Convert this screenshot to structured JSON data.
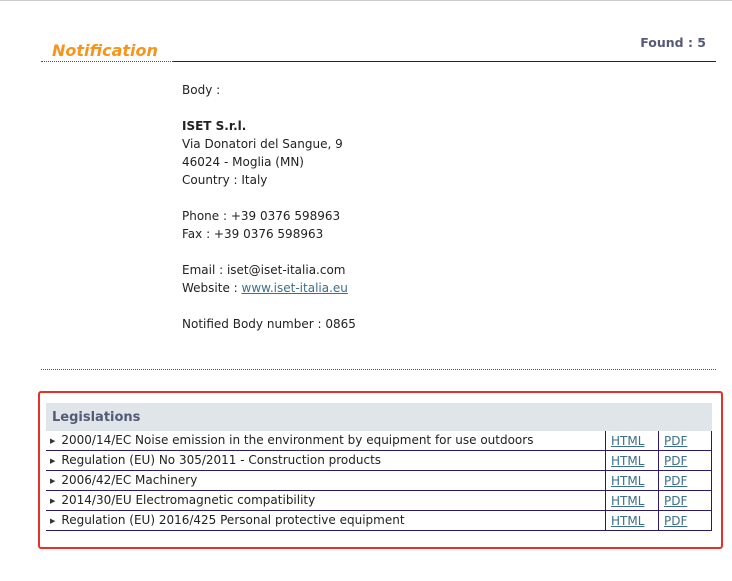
{
  "header": {
    "title": "Notification",
    "found": "Found : 5"
  },
  "body": {
    "label": "Body :",
    "name": "ISET S.r.l.",
    "address": "Via Donatori del Sangue, 9",
    "city": "46024 - Moglia (MN)",
    "country": "Country : Italy",
    "phone": "Phone : +39 0376 598963",
    "fax": "Fax : +39 0376 598963",
    "email": "Email : iset@iset-italia.com",
    "website_label": "Website : ",
    "website": "www.iset-italia.eu",
    "nb_number": "Notified Body number : 0865"
  },
  "legislations": {
    "heading": "Legislations",
    "rows": [
      {
        "title": "2000/14/EC Noise emission in the environment by equipment for use outdoors",
        "html": "HTML",
        "pdf": "PDF"
      },
      {
        "title": "Regulation (EU) No 305/2011 - Construction products",
        "html": "HTML",
        "pdf": "PDF"
      },
      {
        "title": "2006/42/EC Machinery",
        "html": "HTML",
        "pdf": "PDF"
      },
      {
        "title": "2014/30/EU Electromagnetic compatibility",
        "html": "HTML",
        "pdf": "PDF"
      },
      {
        "title": "Regulation (EU) 2016/425 Personal protective equipment",
        "html": "HTML",
        "pdf": "PDF"
      }
    ]
  }
}
